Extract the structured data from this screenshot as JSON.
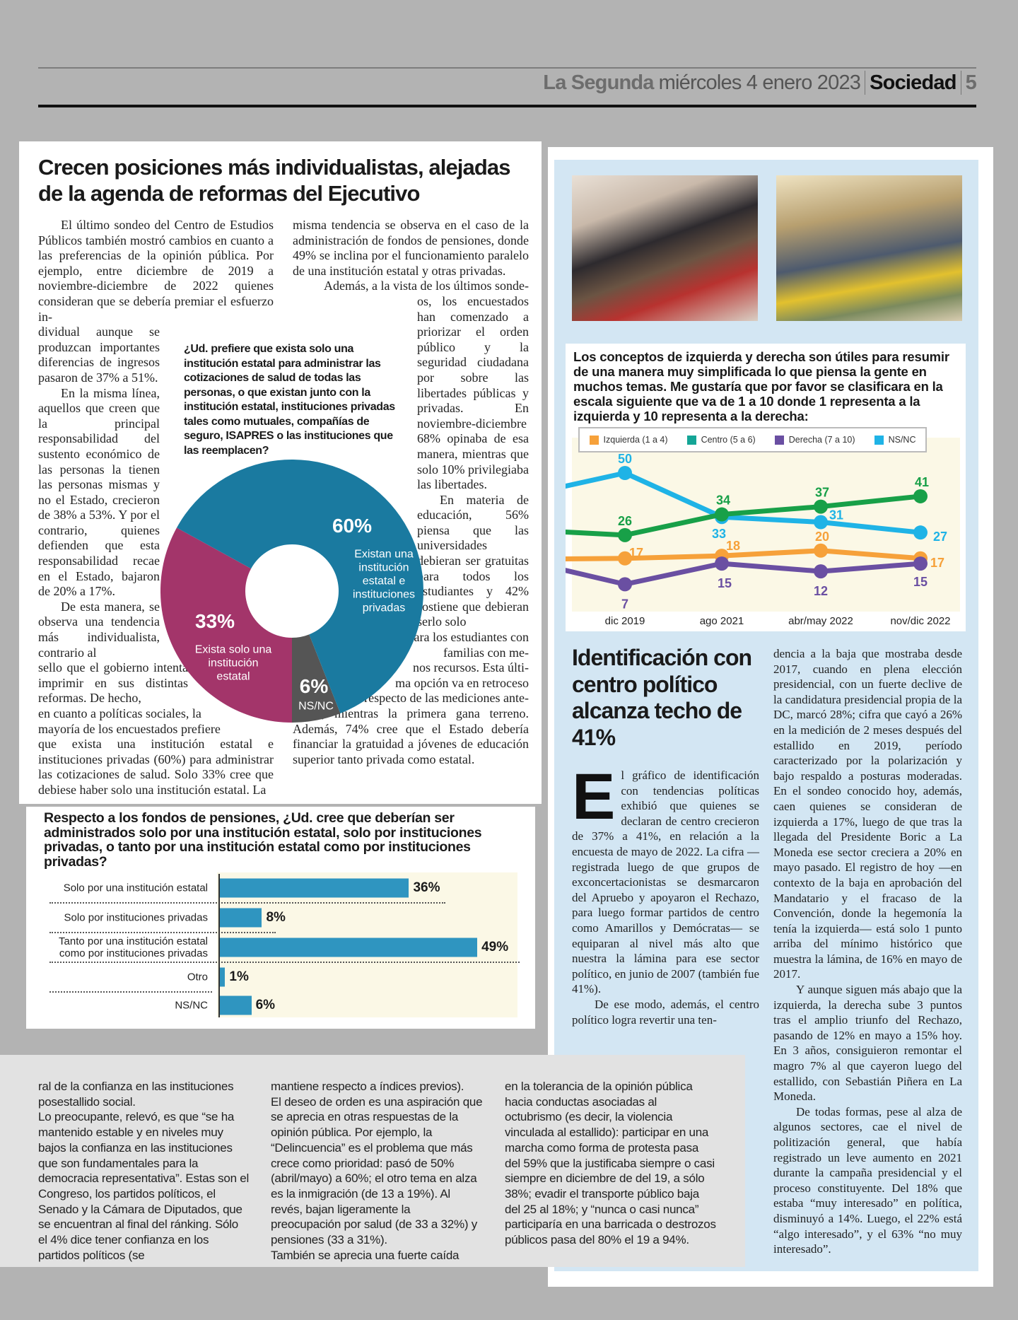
{
  "header": {
    "brand": "La Segunda",
    "date": "miércoles 4 enero 2023",
    "section": "Sociedad",
    "page": "5"
  },
  "article1": {
    "title": "Crecen posiciones más individualistas, alejadas de la agenda de reformas del Ejecutivo",
    "col1": [
      "El último sondeo del Centro de Estudios Públicos también mostró cambios en cuanto a las preferencias de la opinión pública. Por ejemplo, entre diciembre de 2019 a noviembre-diciembre de 2022 quienes consideran que se debería premiar el esfuerzo in-",
      "dividual aunque se produzcan importantes diferencias de ingresos pasaron de 37% a 51%.",
      "En la misma línea, aquellos que creen que la principal responsabilidad del sustento económico de las personas la tienen las personas mismas y no el Estado, crecieron de 38% a 53%. Y por el contrario, quienes defienden que esta responsabilidad recae en el Estado, bajaron de 20% a 17%.",
      "De esta manera, se observa una tendencia más individualista, contrario al",
      "sello que el gobierno intenta imprimir en sus distintas reformas. De hecho,",
      "en cuanto a políticas sociales, la",
      "mayoría de los encuestados prefiere",
      "que exista una institución estatal e instituciones privadas (60%) para administrar las cotizaciones de salud. Solo 33% cree que debiese haber solo una institución estatal. La"
    ],
    "col2": [
      "misma tendencia se observa en el caso de la administración de fondos de pensiones, donde 49% se inclina por el funcionamiento paralelo de una institución estatal y otras privadas.",
      "Además, a la vista de los últimos sonde-",
      "os, los encuestados han comenzado a priorizar el orden público y la seguridad ciudadana por sobre las libertades públicas y privadas. En noviembre-diciembre 68% opinaba de esa manera, mientras que solo 10% privilegiaba las libertades.",
      "En materia de educación, 56% piensa que las universidades debieran ser gratuitas para todos los estudiantes y 42% sostiene que debieran serlo solo",
      "para los estudiantes con familias con me-",
      "nos recursos. Esta últi-",
      "ma opción va en retroceso",
      "respecto de las mediciones ante-",
      "riores, mientras la primera gana terreno. Además, 74% cree que el Estado debería financiar la gratuidad a jóvenes de educación superior tanto privada como estatal."
    ]
  },
  "chart_data": [
    {
      "type": "pie",
      "title": "¿Ud. prefiere que exista solo una institución estatal para administrar las cotizaciones de salud de todas las personas, o que existan junto con la institución estatal, instituciones privadas tales como mutuales, compañías de seguro, ISAPRES o las instituciones que las reemplacen?",
      "donut": true,
      "slices": [
        {
          "label": "Existan una institución estatal e instituciones privadas",
          "value": 60,
          "value_label": "60%",
          "color": "#1a7aa0"
        },
        {
          "label": "Exista solo una institución estatal",
          "value": 33,
          "value_label": "33%",
          "color": "#a3356a"
        },
        {
          "label": "NS/NC",
          "value": 6,
          "value_label": "6%",
          "color": "#555555"
        }
      ]
    },
    {
      "type": "bar",
      "orientation": "horizontal",
      "title": "Respecto a los fondos de pensiones, ¿Ud. cree que deberían ser administrados solo por una institución estatal, solo por instituciones privadas, o tanto por una institución estatal como por instituciones privadas?",
      "categories": [
        "Solo por una institución estatal",
        "Solo por instituciones privadas",
        "Tanto por una institución estatal como por instituciones privadas",
        "Otro",
        "NS/NC"
      ],
      "values": [
        36,
        8,
        49,
        1,
        6
      ],
      "value_labels": [
        "36%",
        "8%",
        "49%",
        "1%",
        "6%"
      ],
      "color": "#2f95c0",
      "xlim": [
        0,
        55
      ]
    },
    {
      "type": "line",
      "title": "Los conceptos de izquierda y derecha son útiles para resumir de una manera muy simplificada lo que piensa la gente en muchos temas. Me gustaría que por favor se clasificara en la escala siguiente que va de 1 a 10 donde 1 representa a la izquierda y 10 representa a la derecha:",
      "categories": [
        "dic 2019",
        "ago 2021",
        "abr/may 2022",
        "nov/dic 2022"
      ],
      "legend_position": "top",
      "ylim": [
        0,
        55
      ],
      "series": [
        {
          "name": "Izquierda (1 a 4)",
          "values": [
            17,
            18,
            20,
            17
          ],
          "previous": 16.8,
          "color": "#f6a13a"
        },
        {
          "name": "Centro (5 a 6)",
          "values": [
            26,
            34,
            37,
            41
          ],
          "previous": 27.2,
          "color": "#18a048",
          "legend_color": "#14a596"
        },
        {
          "name": "Derecha (7 a 10)",
          "values": [
            7,
            15,
            12,
            15
          ],
          "previous": 12.5,
          "color": "#6a4fa2"
        },
        {
          "name": "NS/NC",
          "values": [
            50,
            33,
            31,
            27
          ],
          "previous": 44.8,
          "color": "#1fb3e6"
        }
      ]
    }
  ],
  "article2": {
    "title": "Identificación con centro político alcanza techo de 41%",
    "dropcap": "E",
    "left": [
      "l gráfico de identificación con tendencias políticas exhibió que quienes se declaran de centro crecieron de 37% a 41%, en relación a la encuesta de mayo de 2022. La cifra —registrada luego de que grupos de exconcertacionistas se desmarcaron del Apruebo y apoyaron el Rechazo, para luego formar partidos de centro como Amarillos y Demócratas— se equiparan al nivel más alto que nuestra la lámina para ese sector político, en junio de 2007 (también fue 41%).",
      "De ese modo, además, el centro político logra revertir una ten-"
    ],
    "right": [
      "dencia a la baja que mostraba desde 2017, cuando en plena elección presidencial, con un fuerte declive de la candidatura presidencial propia de la DC, marcó 28%; cifra que cayó a 26% en la medición de 2 meses después del estallido en 2019, período caracterizado por la polarización y bajo respaldo a posturas moderadas. En el sondeo conocido hoy, además, caen quienes se consideran de izquierda a 17%, luego de que tras la llegada del Presidente Boric a La Moneda ese sector creciera a 20% en mayo pasado. El registro de hoy —en contexto de la baja en aprobación del Mandatario y el fracaso de la Convención, donde la hegemonía la tenía la izquierda— está solo 1 punto arriba del mínimo histórico que muestra la lámina, de 16% en mayo de 2017.",
      "Y aunque siguen más abajo que la izquierda, la derecha sube 3 puntos tras el amplio triunfo del Rechazo, pasando de 12% en mayo a 15% hoy. En 3 años, consiguieron remontar el magro 7% al que cayeron luego del estallido, con Sebastián Piñera en La Moneda.",
      "De todas formas, pese al alza de algunos sectores, cae el nivel de politización general, que había registrado un leve aumento en 2021 durante la campaña presidencial y el proceso constituyente. Del 18% que estaba “muy interesado” en política, disminuyó a 14%. Luego, el 22% está “algo interesado”, y el 63% “no muy interesado”."
    ]
  },
  "article3": {
    "columns": [
      [
        "ral de la confianza en las instituciones posestallido social.",
        "Lo preocupante, relevó, es que “se ha mantenido estable y en niveles muy bajos la confianza en las instituciones que son fundamentales para la democracia representativa”. Estas son el Congreso, los partidos políticos, el Senado y la Cámara de Diputados, que se encuentran al final del ránking. Sólo el 4% dice tener confianza en los partidos políticos (se"
      ],
      [
        "mantiene respecto a índices previos).",
        "El deseo de orden es una aspiración que se aprecia en otras respuestas de la opinión pública. Por ejemplo, la “Delincuencia” es el problema que más crece como prioridad: pasó de 50% (abril/mayo) a 60%; el otro tema en alza es la inmigración (de 13 a 19%). Al revés, bajan ligeramente la preocupación por salud (de 33 a 32%) y pensiones (33 a 31%).",
        "También se aprecia una fuerte caída"
      ],
      [
        "en la tolerancia de la opinión pública hacia conductas asociadas al octubrismo (es decir, la violencia vinculada al estallido): participar en una marcha como forma de protesta pasa del 59% que la justificaba siempre o casi siempre en diciembre de del 19, a sólo 38%; evadir el transporte público baja del 25 al 18%; y “nunca o casi nunca” participaría en una barricada o destrozos públicos pasa del 80% el 19 a 94%."
      ]
    ]
  },
  "colors": {
    "page_bg": "#b3b3b3",
    "panel_blue": "#d3e6f3",
    "chart_bg": "#fbf8e6",
    "gray_panel": "#e2e2e2"
  }
}
